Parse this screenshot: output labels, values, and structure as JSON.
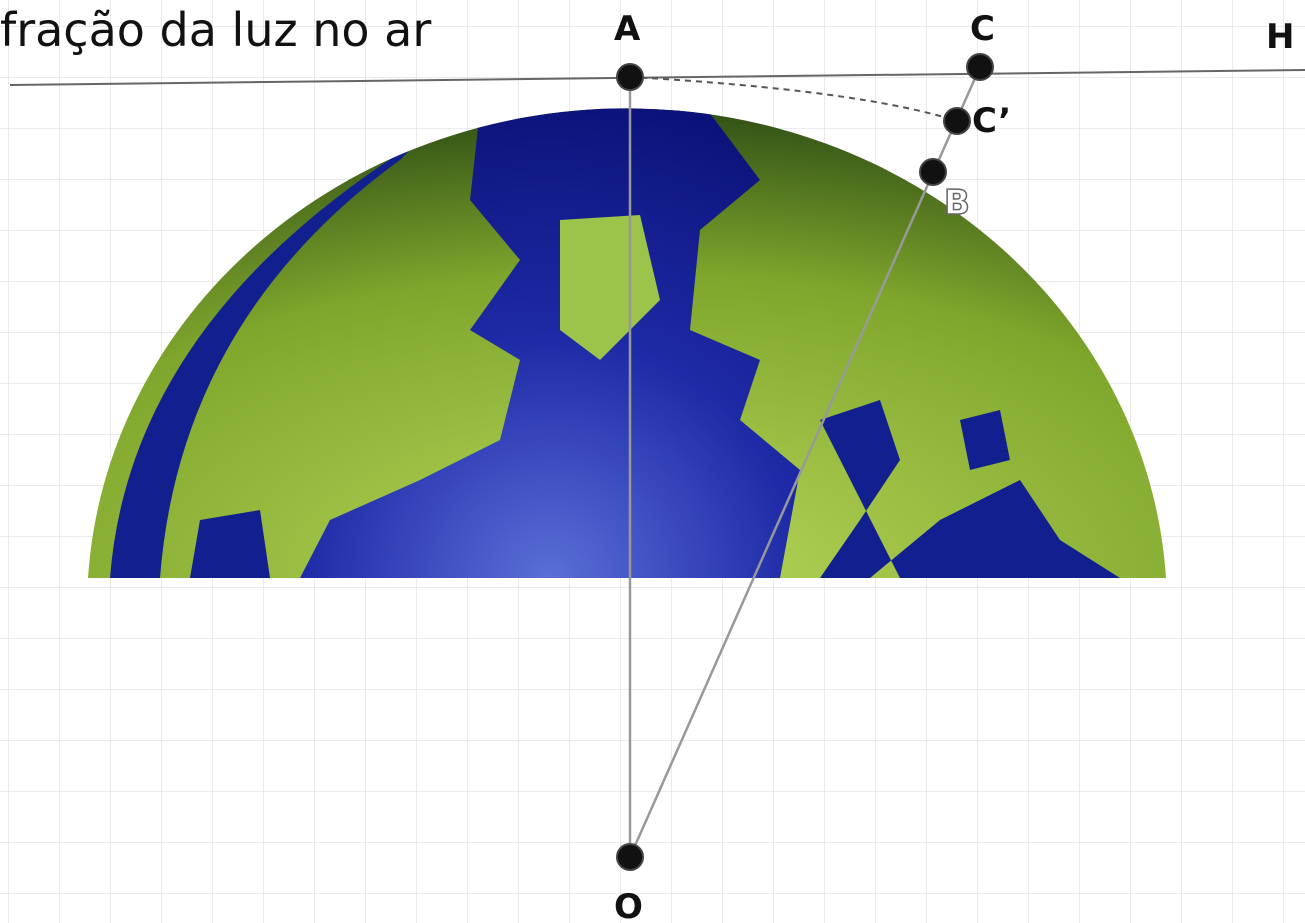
{
  "title": "fração da luz no ar",
  "points": [
    {
      "label": "A"
    },
    {
      "label": "C"
    },
    {
      "label": "H"
    },
    {
      "label": "C’"
    },
    {
      "label": "B"
    },
    {
      "label": "O"
    }
  ]
}
